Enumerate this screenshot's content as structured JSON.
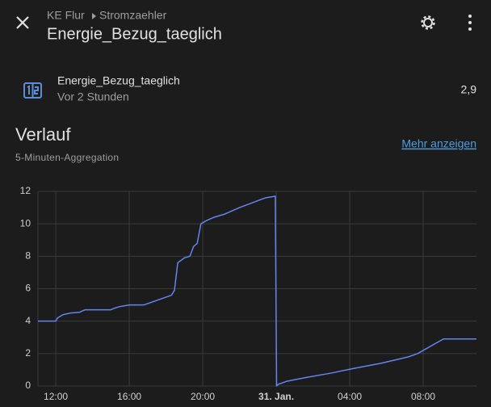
{
  "header": {
    "area": "KE Flur",
    "device": "Stromzaehler",
    "title": "Energie_Bezug_taeglich"
  },
  "entity": {
    "name": "Energie_Bezug_taeglich",
    "last_changed": "Vor 2 Stunden",
    "state": "2,9"
  },
  "history": {
    "title": "Verlauf",
    "subtitle": "5-Minuten-Aggregation",
    "link": "Mehr anzeigen"
  },
  "chart_data": {
    "type": "line",
    "x": [
      11.03,
      12.0,
      12.1,
      12.4,
      12.8,
      13.3,
      13.6,
      15.0,
      15.2,
      15.5,
      16.0,
      16.8,
      17.3,
      17.8,
      18.3,
      18.46,
      18.64,
      19.0,
      19.3,
      19.5,
      19.7,
      19.9,
      20.2,
      20.6,
      21.2,
      22.0,
      22.7,
      23.4,
      23.95,
      24.02,
      24.1,
      24.6,
      25.5,
      27.0,
      28.3,
      29.7,
      31.2,
      31.7,
      33.1,
      34.9
    ],
    "series": [
      {
        "color": "#6584ee",
        "values": [
          4.0,
          4.0,
          4.2,
          4.4,
          4.5,
          4.55,
          4.7,
          4.7,
          4.8,
          4.9,
          5.0,
          5.0,
          5.2,
          5.4,
          5.6,
          5.9,
          7.6,
          7.9,
          8.0,
          8.6,
          8.8,
          10.0,
          10.2,
          10.4,
          10.6,
          11.0,
          11.3,
          11.6,
          11.7,
          0.0,
          0.1,
          0.3,
          0.5,
          0.8,
          1.1,
          1.4,
          1.8,
          2.0,
          2.9,
          2.9
        ]
      }
    ],
    "xlim": [
      11.03,
      34.9
    ],
    "ylim": [
      0,
      12
    ],
    "xticks": [
      {
        "value": 12,
        "label": "12:00"
      },
      {
        "value": 16,
        "label": "16:00"
      },
      {
        "value": 20,
        "label": "20:00"
      },
      {
        "value": 24,
        "label": "31. Jan.",
        "bold": true
      },
      {
        "value": 28,
        "label": "04:00"
      },
      {
        "value": 32,
        "label": "08:00"
      }
    ],
    "yticks": [
      0,
      2,
      4,
      6,
      8,
      10,
      12
    ],
    "grid": true
  }
}
